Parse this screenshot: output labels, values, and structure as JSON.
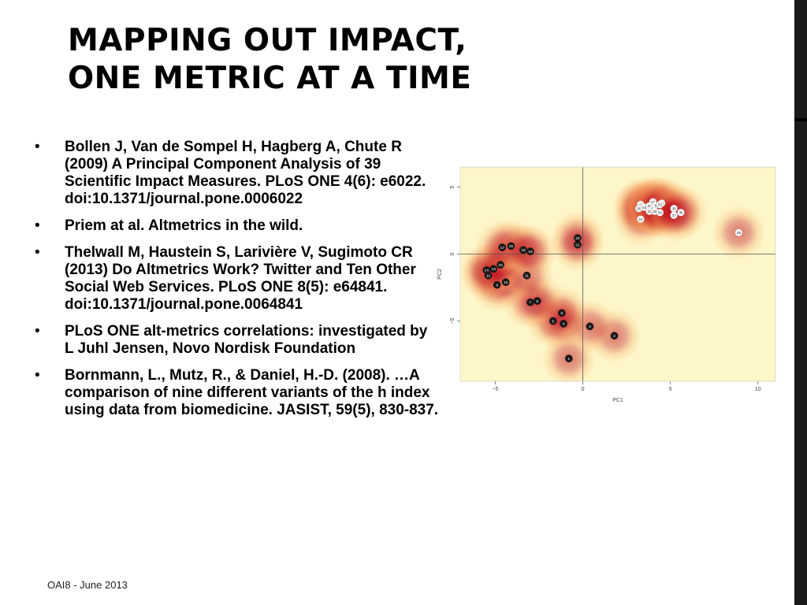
{
  "slide": {
    "title_lines": [
      "MAPPING OUT IMPACT,",
      "ONE METRIC AT A TIME"
    ],
    "references": [
      "Bollen J, Van de Sompel H, Hagberg A, Chute R (2009) A Principal Component Analysis of 39 Scientific Impact Measures. PLoS ONE 4(6): e6022. doi:10.1371/journal.pone.0006022",
      "Priem at al. Altmetrics in the wild.",
      "Thelwall M, Haustein S, Larivière V, Sugimoto CR (2013) Do Altmetrics Work? Twitter and Ten Other Social Web Services. PLoS ONE 8(5): e64841. doi:10.1371/journal.pone.0064841",
      "PLoS ONE alt-metrics correlations: investigated by L Juhl Jensen, Novo Nordisk Foundation",
      "Bornmann, L., Mutz, R., & Daniel, H.-D. (2008). …A comparison of nine different variants of the h index using data from biomedicine. JASIST, 59(5), 830-837."
    ],
    "bullet_char": "•",
    "footer": "OAI8 - June 2013"
  },
  "chart_data": {
    "type": "scatter",
    "xlabel": "PC1",
    "ylabel": "PC2",
    "xlim": [
      -7,
      11
    ],
    "ylim": [
      -9.5,
      6.5
    ],
    "xticks": [
      -5,
      0,
      5,
      10
    ],
    "yticks": [
      -5,
      0,
      5
    ],
    "heatmap_background": true,
    "colors": {
      "low": "#fdf6c8",
      "mid": "#f5a05a",
      "high": "#c1121f",
      "point_dark": "#1a1a1a",
      "point_light": "#ffffff",
      "axis_line": "#555555"
    },
    "points": [
      {
        "label": "1",
        "x": -0.8,
        "y": -7.8,
        "style": "dark"
      },
      {
        "label": "2",
        "x": 1.8,
        "y": -6.1,
        "style": "dark"
      },
      {
        "label": "3",
        "x": 0.4,
        "y": -5.4,
        "style": "dark"
      },
      {
        "label": "4",
        "x": -1.1,
        "y": -5.2,
        "style": "dark"
      },
      {
        "label": "5",
        "x": -1.7,
        "y": -5.0,
        "style": "dark"
      },
      {
        "label": "6",
        "x": -1.2,
        "y": -4.4,
        "style": "dark"
      },
      {
        "label": "7",
        "x": -3.0,
        "y": -3.6,
        "style": "dark"
      },
      {
        "label": "8",
        "x": -2.6,
        "y": -3.5,
        "style": "dark"
      },
      {
        "label": "9",
        "x": -4.9,
        "y": -2.3,
        "style": "dark"
      },
      {
        "label": "10",
        "x": -4.4,
        "y": -2.1,
        "style": "dark"
      },
      {
        "label": "11",
        "x": -3.2,
        "y": -1.6,
        "style": "dark"
      },
      {
        "label": "12",
        "x": -5.4,
        "y": -1.6,
        "style": "dark"
      },
      {
        "label": "13",
        "x": -5.1,
        "y": -1.1,
        "style": "dark"
      },
      {
        "label": "14",
        "x": -5.5,
        "y": -1.2,
        "style": "dark"
      },
      {
        "label": "15",
        "x": -4.7,
        "y": -0.8,
        "style": "dark"
      },
      {
        "label": "16",
        "x": -4.1,
        "y": 0.6,
        "style": "dark"
      },
      {
        "label": "17",
        "x": -4.6,
        "y": 0.5,
        "style": "dark"
      },
      {
        "label": "18",
        "x": -3.4,
        "y": 0.3,
        "style": "dark"
      },
      {
        "label": "19",
        "x": -3.0,
        "y": 0.2,
        "style": "dark"
      },
      {
        "label": "20",
        "x": -0.3,
        "y": 1.2,
        "style": "dark"
      },
      {
        "label": "21",
        "x": -0.3,
        "y": 0.7,
        "style": "dark"
      },
      {
        "label": "22",
        "x": 3.3,
        "y": 3.7,
        "style": "light"
      },
      {
        "label": "23",
        "x": 3.5,
        "y": 3.5,
        "style": "light"
      },
      {
        "label": "24",
        "x": 3.3,
        "y": 2.6,
        "style": "light"
      },
      {
        "label": "25",
        "x": 3.2,
        "y": 3.4,
        "style": "light"
      },
      {
        "label": "26",
        "x": 4.1,
        "y": 3.6,
        "style": "light"
      },
      {
        "label": "27",
        "x": 4.0,
        "y": 3.9,
        "style": "light"
      },
      {
        "label": "28",
        "x": 3.8,
        "y": 3.2,
        "style": "light"
      },
      {
        "label": "29",
        "x": 3.8,
        "y": 3.6,
        "style": "light"
      },
      {
        "label": "30",
        "x": 4.5,
        "y": 3.8,
        "style": "light"
      },
      {
        "label": "31",
        "x": 4.0,
        "y": 3.4,
        "style": "light"
      },
      {
        "label": "32",
        "x": 4.1,
        "y": 3.2,
        "style": "light"
      },
      {
        "label": "33",
        "x": 4.4,
        "y": 3.7,
        "style": "light"
      },
      {
        "label": "34",
        "x": 4.4,
        "y": 3.1,
        "style": "light"
      },
      {
        "label": "35",
        "x": 5.2,
        "y": 3.4,
        "style": "light"
      },
      {
        "label": "36",
        "x": 5.6,
        "y": 3.1,
        "style": "light"
      },
      {
        "label": "37",
        "x": 5.2,
        "y": 2.9,
        "style": "light"
      },
      {
        "label": "38",
        "x": 8.9,
        "y": 1.6,
        "style": "light"
      }
    ]
  }
}
